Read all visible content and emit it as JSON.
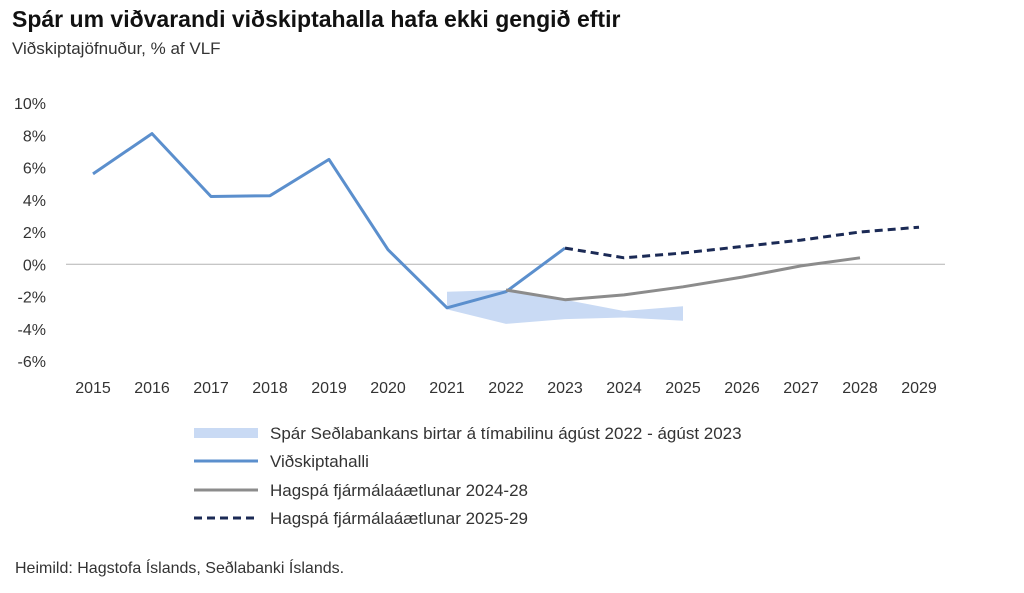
{
  "title": "Spár um viðvarandi viðskiptahalla hafa ekki gengið eftir",
  "subtitle": "Viðskiptajöfnuður, % af VLF",
  "source": "Heimild: Hagstofa Íslands, Seðlabanki Íslands.",
  "chart_data": {
    "type": "line",
    "title": "Spár um viðvarandi viðskiptahalla hafa ekki gengið eftir",
    "subtitle": "Viðskiptajöfnuður, % af VLF",
    "x": [
      "2015",
      "2016",
      "2017",
      "2018",
      "2019",
      "2020",
      "2021",
      "2022",
      "2023",
      "2024",
      "2025",
      "2026",
      "2027",
      "2028",
      "2029"
    ],
    "ylim": [
      -6,
      10
    ],
    "yticks": [
      {
        "value": 10,
        "label": "10%"
      },
      {
        "value": 8,
        "label": "8%"
      },
      {
        "value": 6,
        "label": "6%"
      },
      {
        "value": 4,
        "label": "4%"
      },
      {
        "value": 2,
        "label": "2%"
      },
      {
        "value": 0,
        "label": "0%"
      },
      {
        "value": -2,
        "label": "-2%"
      },
      {
        "value": -4,
        "label": "-4%"
      },
      {
        "value": -6,
        "label": "-6%"
      }
    ],
    "grid": false,
    "legend_position": "bottom",
    "band": {
      "name": "Spár Seðlabankans birtar á tímabilinu ágúst 2022 - ágúst 2023",
      "color": "#c9daf4",
      "points": [
        {
          "x": "2021",
          "low": -2.8,
          "high": -1.7
        },
        {
          "x": "2022",
          "low": -3.7,
          "high": -1.6
        },
        {
          "x": "2023",
          "low": -3.4,
          "high": -2.2
        },
        {
          "x": "2024",
          "low": -3.3,
          "high": -2.9
        },
        {
          "x": "2025",
          "low": -3.5,
          "high": -2.6
        }
      ]
    },
    "series": [
      {
        "name": "Viðskiptahalli",
        "color": "#5b8fcd",
        "style": "solid",
        "points": [
          {
            "x": "2015",
            "y": 5.6
          },
          {
            "x": "2016",
            "y": 8.1
          },
          {
            "x": "2017",
            "y": 4.2
          },
          {
            "x": "2018",
            "y": 4.25
          },
          {
            "x": "2019",
            "y": 6.5
          },
          {
            "x": "2020",
            "y": 0.9
          },
          {
            "x": "2021",
            "y": -2.7
          },
          {
            "x": "2022",
            "y": -1.7
          },
          {
            "x": "2023",
            "y": 1.0
          }
        ]
      },
      {
        "name": "Hagspá fjármálaáætlunar 2024-28",
        "color": "#8c8c8c",
        "style": "solid",
        "points": [
          {
            "x": "2022",
            "y": -1.6
          },
          {
            "x": "2023",
            "y": -2.2
          },
          {
            "x": "2024",
            "y": -1.9
          },
          {
            "x": "2025",
            "y": -1.4
          },
          {
            "x": "2026",
            "y": -0.8
          },
          {
            "x": "2027",
            "y": -0.1
          },
          {
            "x": "2028",
            "y": 0.4
          }
        ]
      },
      {
        "name": "Hagspá fjármálaáætlunar 2025-29",
        "color": "#1b2a55",
        "style": "dashed",
        "points": [
          {
            "x": "2023",
            "y": 1.0
          },
          {
            "x": "2024",
            "y": 0.4
          },
          {
            "x": "2025",
            "y": 0.7
          },
          {
            "x": "2026",
            "y": 1.1
          },
          {
            "x": "2027",
            "y": 1.5
          },
          {
            "x": "2028",
            "y": 2.0
          },
          {
            "x": "2029",
            "y": 2.3
          }
        ]
      }
    ]
  }
}
